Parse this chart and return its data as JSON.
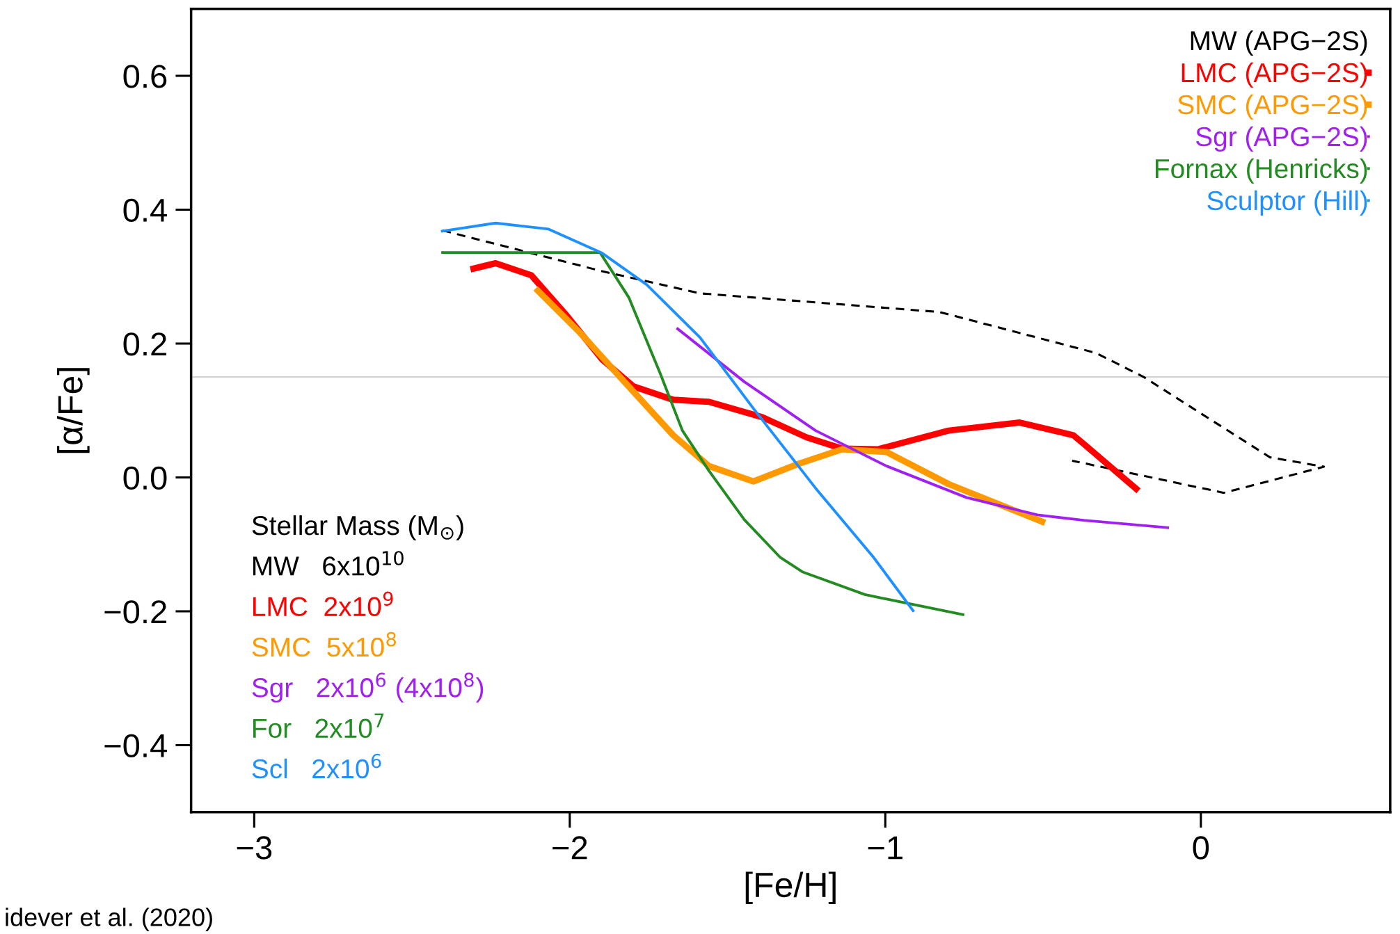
{
  "chart_data": {
    "type": "line",
    "xlabel": "[Fe/H]",
    "ylabel": "[α/Fe]",
    "xlim": [
      -3.2,
      0.6
    ],
    "ylim": [
      -0.5,
      0.7
    ],
    "xticks": [
      {
        "value": -3,
        "label": "−3"
      },
      {
        "value": -2,
        "label": "−2"
      },
      {
        "value": -1,
        "label": "−1"
      },
      {
        "value": 0,
        "label": "0"
      }
    ],
    "yticks": [
      {
        "value": -0.4,
        "label": "−0.4"
      },
      {
        "value": -0.2,
        "label": "−0.2"
      },
      {
        "value": 0.0,
        "label": "0.0"
      },
      {
        "value": 0.2,
        "label": "0.2"
      },
      {
        "value": 0.4,
        "label": "0.4"
      },
      {
        "value": 0.6,
        "label": "0.6"
      }
    ],
    "grid": false,
    "legend": "top right",
    "marker": "none",
    "ref_lines": [
      {
        "axis": "y",
        "value": 0.15,
        "color": "#d3d3d3"
      }
    ],
    "series": [
      {
        "name": "MW (APG−2S)",
        "color": "#000000",
        "line_style": "dashed",
        "x": [
          -2.403,
          -1.897,
          -1.587,
          -0.827,
          -0.333,
          -0.181,
          0.219,
          0.39,
          0.073,
          -0.408
        ],
        "values": [
          0.369,
          0.308,
          0.275,
          0.247,
          0.186,
          0.15,
          0.03,
          0.016,
          -0.023,
          0.025
        ]
      },
      {
        "name": "LMC (APG−2S)",
        "color": "#ff0000",
        "line_style": "solid",
        "x": [
          -2.305,
          -2.235,
          -2.122,
          -2.01,
          -1.897,
          -1.798,
          -1.672,
          -1.559,
          -1.39,
          -1.25,
          -1.137,
          -1.024,
          -0.799,
          -0.574,
          -0.404,
          -0.371,
          -0.205
        ],
        "values": [
          0.312,
          0.32,
          0.302,
          0.242,
          0.176,
          0.136,
          0.116,
          0.113,
          0.09,
          0.06,
          0.043,
          0.042,
          0.07,
          0.082,
          0.063,
          0.05,
          -0.017
        ]
      },
      {
        "name": "SMC (APG−2S)",
        "color": "#ff9900",
        "line_style": "solid",
        "x": [
          -2.101,
          -1.967,
          -1.827,
          -1.672,
          -1.559,
          -1.418,
          -1.277,
          -1.137,
          -0.996,
          -0.799,
          -0.503
        ],
        "values": [
          0.279,
          0.216,
          0.143,
          0.063,
          0.017,
          -0.006,
          0.02,
          0.042,
          0.038,
          -0.01,
          -0.066
        ]
      },
      {
        "name": "Sgr (APG−2S)",
        "color": "#a020f0",
        "line_style": "solid",
        "x": [
          -1.658,
          -1.447,
          -1.221,
          -0.996,
          -0.743,
          -0.518,
          -0.371,
          -0.105
        ],
        "values": [
          0.222,
          0.143,
          0.07,
          0.017,
          -0.03,
          -0.056,
          -0.064,
          -0.075
        ]
      },
      {
        "name": "Fornax (Henricks)",
        "color": "#228b22",
        "line_style": "solid",
        "x": [
          -2.403,
          -1.904,
          -1.813,
          -1.714,
          -1.643,
          -1.559,
          -1.447,
          -1.334,
          -1.263,
          -1.065,
          -0.754
        ],
        "values": [
          0.336,
          0.336,
          0.269,
          0.156,
          0.07,
          0.01,
          -0.063,
          -0.119,
          -0.141,
          -0.175,
          -0.205
        ]
      },
      {
        "name": "Sculptor (Hill)",
        "color": "#1e90ff",
        "line_style": "solid",
        "x": [
          -2.404,
          -2.235,
          -2.067,
          -1.897,
          -1.756,
          -1.587,
          -1.418,
          -1.221,
          -1.038,
          -0.912
        ],
        "values": [
          0.368,
          0.38,
          0.371,
          0.335,
          0.288,
          0.209,
          0.103,
          -0.016,
          -0.119,
          -0.199
        ]
      }
    ],
    "annotations": [
      "Stellar Mass (M$_{⊙}$)",
      "MW   6x10$^{10}$",
      "LMC  2x10$^{9}$",
      "SMC  5x10$^{8}$",
      "Sgr   2x10$^{6}$ (4x10$^{8}$)",
      "For   2x10$^{7}$",
      "Scl   2x10$^{6}$",
      "idever et al. (2020)"
    ]
  }
}
